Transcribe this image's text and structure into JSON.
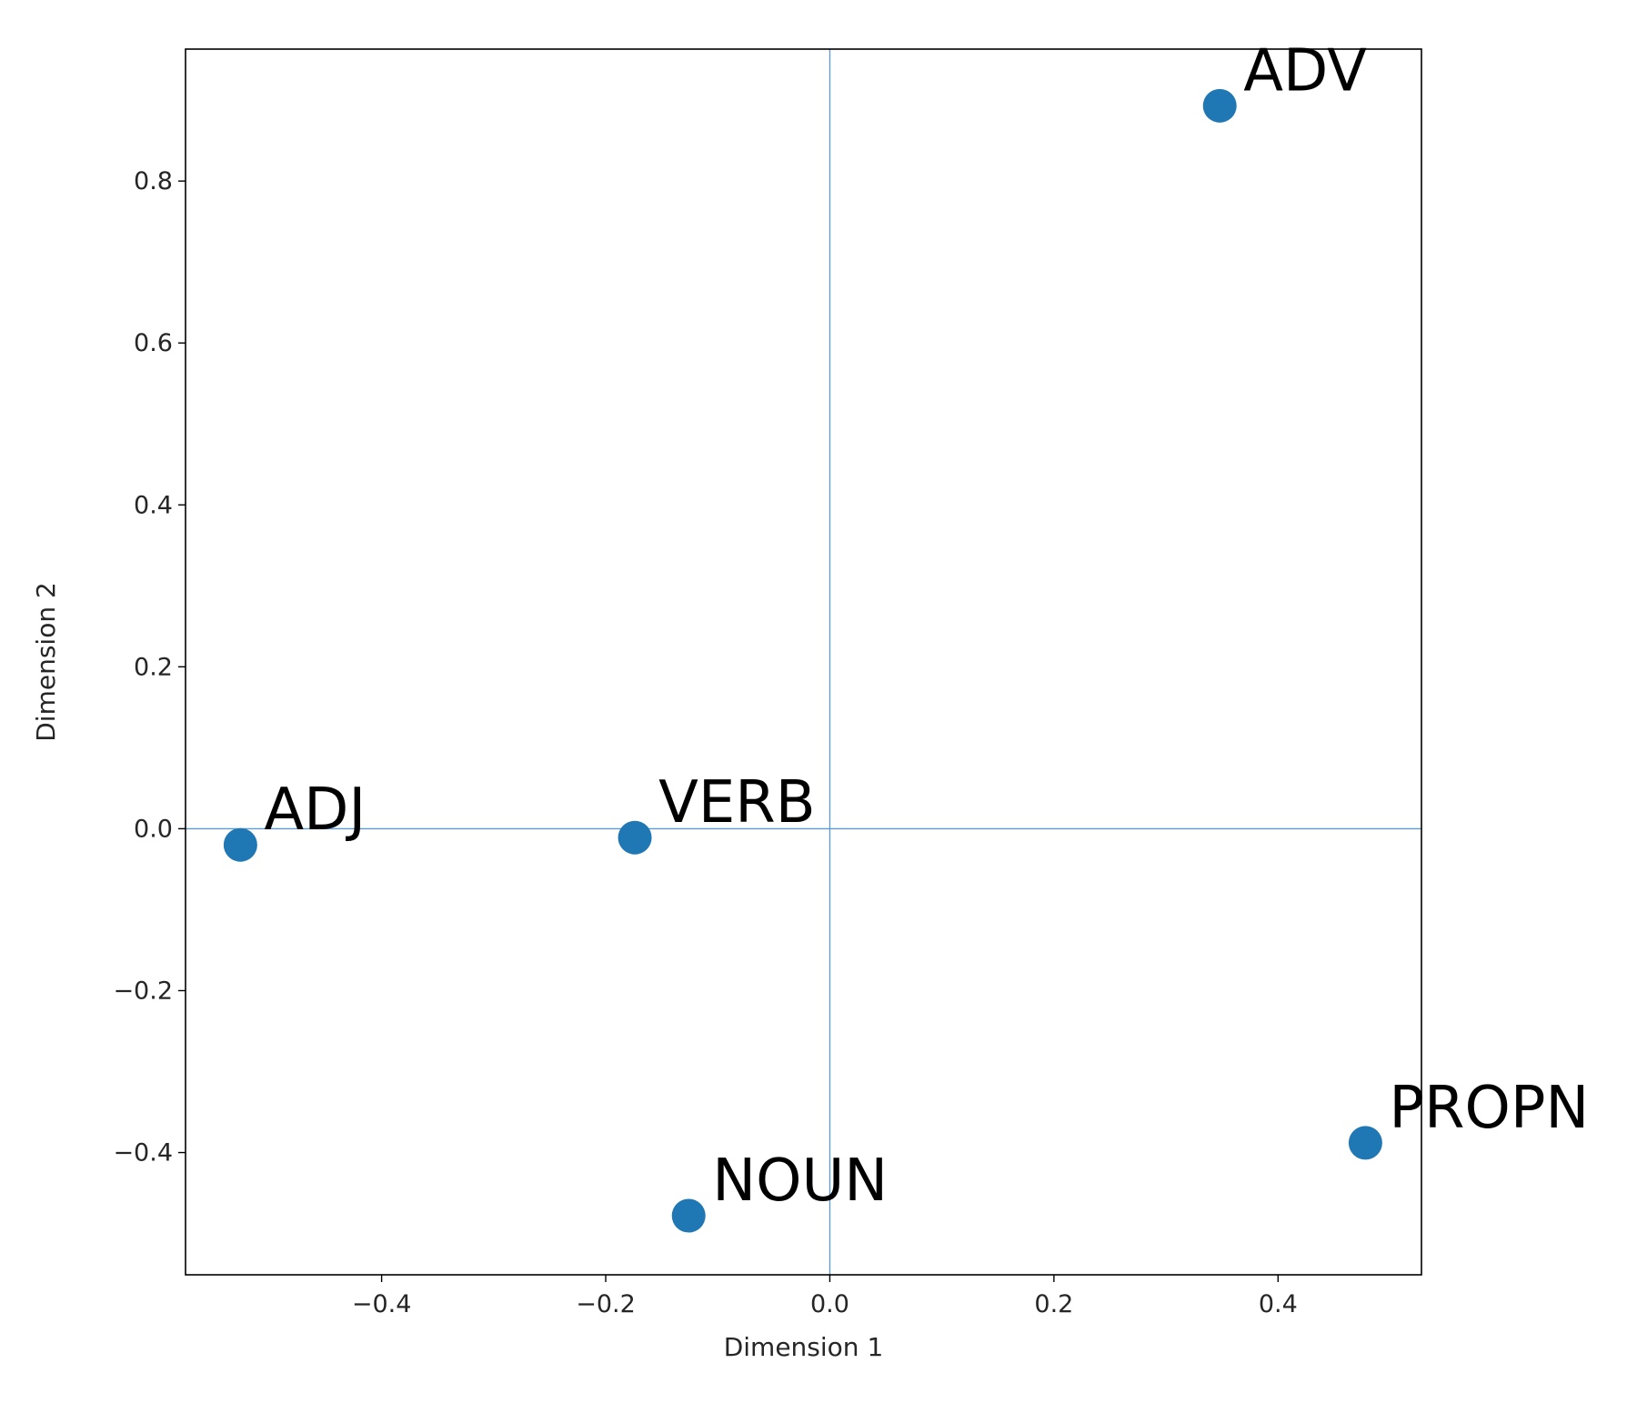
{
  "chart_data": {
    "type": "scatter",
    "title": "",
    "xlabel": "Dimension 1",
    "ylabel": "Dimension 2",
    "xlim": [
      -0.575,
      0.528
    ],
    "ylim": [
      -0.551,
      0.963
    ],
    "xticks": [
      -0.4,
      -0.2,
      0.0,
      0.2,
      0.4
    ],
    "yticks": [
      -0.4,
      -0.2,
      0.0,
      0.2,
      0.4,
      0.6,
      0.8
    ],
    "xtick_labels": [
      "−0.4",
      "−0.2",
      "0.0",
      "0.2",
      "0.4"
    ],
    "ytick_labels": [
      "−0.4",
      "−0.2",
      "0.0",
      "0.2",
      "0.4",
      "0.6",
      "0.8"
    ],
    "reference_lines": {
      "x": 0.0,
      "y": 0.0
    },
    "grid": false,
    "legend": null,
    "marker_color": "#1f77b4",
    "reference_line_color": "#5b9bd5",
    "points": [
      {
        "label": "ADJ",
        "x": -0.526,
        "y": -0.02
      },
      {
        "label": "VERB",
        "x": -0.174,
        "y": -0.011
      },
      {
        "label": "ADV",
        "x": 0.348,
        "y": 0.893
      },
      {
        "label": "PROPN",
        "x": 0.478,
        "y": -0.388
      },
      {
        "label": "NOUN",
        "x": -0.126,
        "y": -0.478
      }
    ]
  }
}
